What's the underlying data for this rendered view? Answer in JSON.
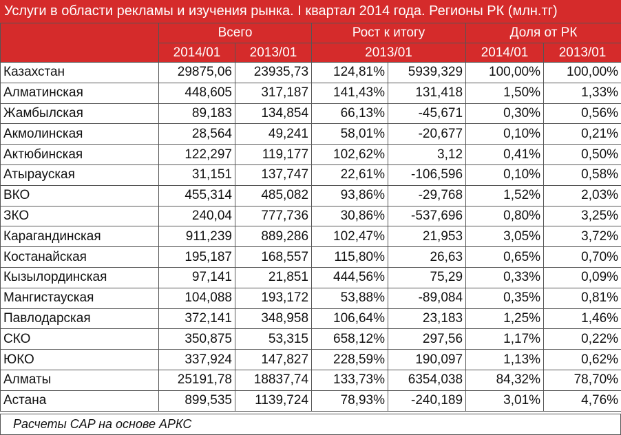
{
  "title": "Услуги в области рекламы и изучения рынка. I квартал 2014 года. Регионы РК (млн.тг)",
  "header": {
    "group1": "Всего",
    "group2": "Рост к итогу",
    "group3": "Доля от РК",
    "g1_col1": "2014/01",
    "g1_col2": "2013/01",
    "g2_sub": "2013/01",
    "g3_col1": "2014/01",
    "g3_col2": "2013/01"
  },
  "rows": [
    {
      "region": "Казахстан",
      "v2014": "29875,06",
      "v2013": "23935,73",
      "growth_pct": "124,81%",
      "growth_abs": "5939,329",
      "share2014": "100,00%",
      "share2013": "100,00%"
    },
    {
      "region": "Алматинская",
      "v2014": "448,605",
      "v2013": "317,187",
      "growth_pct": "141,43%",
      "growth_abs": "131,418",
      "share2014": "1,50%",
      "share2013": "1,33%"
    },
    {
      "region": "Жамбылская",
      "v2014": "89,183",
      "v2013": "134,854",
      "growth_pct": "66,13%",
      "growth_abs": "-45,671",
      "share2014": "0,30%",
      "share2013": "0,56%"
    },
    {
      "region": "Акмолинская",
      "v2014": "28,564",
      "v2013": "49,241",
      "growth_pct": "58,01%",
      "growth_abs": "-20,677",
      "share2014": "0,10%",
      "share2013": "0,21%"
    },
    {
      "region": "Актюбинская",
      "v2014": "122,297",
      "v2013": "119,177",
      "growth_pct": "102,62%",
      "growth_abs": "3,12",
      "share2014": "0,41%",
      "share2013": "0,50%"
    },
    {
      "region": "Атырауская",
      "v2014": "31,151",
      "v2013": "137,747",
      "growth_pct": "22,61%",
      "growth_abs": "-106,596",
      "share2014": "0,10%",
      "share2013": "0,58%"
    },
    {
      "region": "ВКО",
      "v2014": "455,314",
      "v2013": "485,082",
      "growth_pct": "93,86%",
      "growth_abs": "-29,768",
      "share2014": "1,52%",
      "share2013": "2,03%"
    },
    {
      "region": "ЗКО",
      "v2014": "240,04",
      "v2013": "777,736",
      "growth_pct": "30,86%",
      "growth_abs": "-537,696",
      "share2014": "0,80%",
      "share2013": "3,25%"
    },
    {
      "region": "Карагандинская",
      "v2014": "911,239",
      "v2013": "889,286",
      "growth_pct": "102,47%",
      "growth_abs": "21,953",
      "share2014": "3,05%",
      "share2013": "3,72%"
    },
    {
      "region": "Костанайская",
      "v2014": "195,187",
      "v2013": "168,557",
      "growth_pct": "115,80%",
      "growth_abs": "26,63",
      "share2014": "0,65%",
      "share2013": "0,70%"
    },
    {
      "region": "Кызылординская",
      "v2014": "97,141",
      "v2013": "21,851",
      "growth_pct": "444,56%",
      "growth_abs": "75,29",
      "share2014": "0,33%",
      "share2013": "0,09%"
    },
    {
      "region": "Мангистауская",
      "v2014": "104,088",
      "v2013": "193,172",
      "growth_pct": "53,88%",
      "growth_abs": "-89,084",
      "share2014": "0,35%",
      "share2013": "0,81%"
    },
    {
      "region": "Павлодарская",
      "v2014": "372,141",
      "v2013": "348,958",
      "growth_pct": "106,64%",
      "growth_abs": "23,183",
      "share2014": "1,25%",
      "share2013": "1,46%"
    },
    {
      "region": "СКО",
      "v2014": "350,875",
      "v2013": "53,315",
      "growth_pct": "658,12%",
      "growth_abs": "297,56",
      "share2014": "1,17%",
      "share2013": "0,22%"
    },
    {
      "region": "ЮКО",
      "v2014": "337,924",
      "v2013": "147,827",
      "growth_pct": "228,59%",
      "growth_abs": "190,097",
      "share2014": "1,13%",
      "share2013": "0,62%"
    },
    {
      "region": "Алматы",
      "v2014": "25191,78",
      "v2013": "18837,74",
      "growth_pct": "133,73%",
      "growth_abs": "6354,038",
      "share2014": "84,32%",
      "share2013": "78,70%"
    },
    {
      "region": "Астана",
      "v2014": "899,535",
      "v2013": "1139,724",
      "growth_pct": "78,93%",
      "growth_abs": "-240,189",
      "share2014": "3,01%",
      "share2013": "4,76%"
    }
  ],
  "footer": "Расчеты CAP на основе АРКС",
  "colors": {
    "header_bg": "#d52b2b",
    "header_text": "#ffffff"
  }
}
